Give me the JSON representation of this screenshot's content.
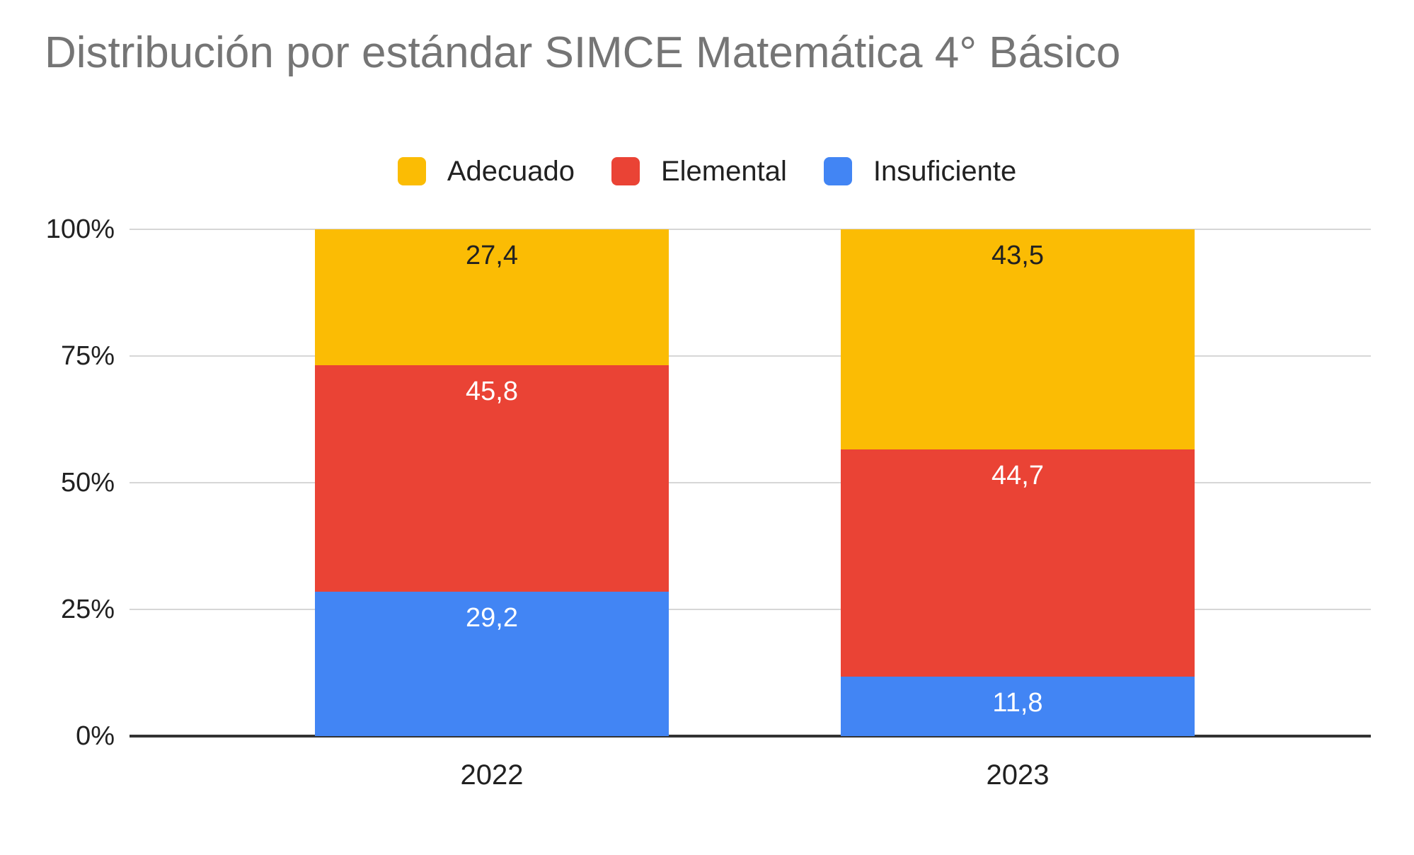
{
  "title": "Distribución por estándar SIMCE Matemática 4° Básico",
  "chart_data": {
    "type": "bar",
    "variant": "column-stacked-100-percent",
    "title": "Distribución por estándar SIMCE Matemática 4° Básico",
    "categories": [
      "2022",
      "2023"
    ],
    "series": [
      {
        "name": "Adecuado",
        "color": "#FBBC04",
        "label_color": "#212121",
        "values": [
          27.4,
          43.5
        ]
      },
      {
        "name": "Elemental",
        "color": "#EA4335",
        "label_color": "#FFFFFF",
        "values": [
          45.8,
          44.7
        ]
      },
      {
        "name": "Insuficiente",
        "color": "#4285F4",
        "label_color": "#FFFFFF",
        "values": [
          29.2,
          11.8
        ]
      }
    ],
    "stack_order_top_to_bottom": [
      "Adecuado",
      "Elemental",
      "Insuficiente"
    ],
    "value_labels": {
      "2022": {
        "Adecuado": "27,4",
        "Elemental": "45,8",
        "Insuficiente": "29,2"
      },
      "2023": {
        "Adecuado": "43,5",
        "Elemental": "44,7",
        "Insuficiente": "11,8"
      }
    },
    "y_axis": {
      "min": 0,
      "max": 100,
      "unit": "%",
      "ticks": [
        "100%",
        "75%",
        "50%",
        "25%",
        "0%"
      ]
    },
    "x_axis": {
      "labels": [
        "2022",
        "2023"
      ]
    },
    "legend_position": "top-center",
    "grid": true,
    "decimal_separator": ","
  },
  "colors": {
    "background": "#FFFFFF",
    "title_text": "#757575",
    "axis_text": "#212121",
    "legend_text": "#212121",
    "gridline": "#D6D6D6",
    "axis_line": "#333333"
  }
}
